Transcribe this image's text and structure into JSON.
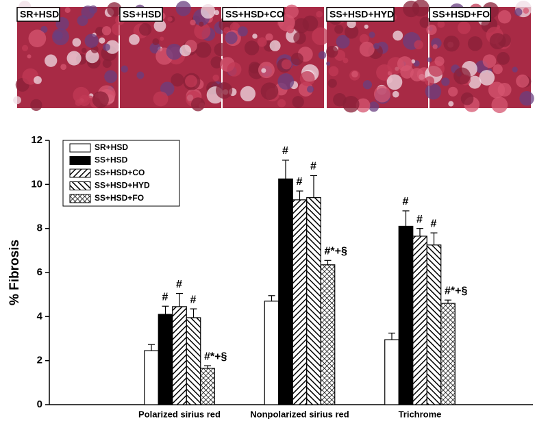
{
  "panels": [
    "SR+HSD",
    "SS+HSD",
    "SS+HSD+CO",
    "SS+HSD+HYD",
    "SS+HSD+FO"
  ],
  "chart_data": {
    "type": "bar",
    "ylabel": "% Fibrosis",
    "categories": [
      "Polarized sirius red",
      "Nonpolarized sirius red",
      "Trichrome"
    ],
    "ylim": [
      0,
      12
    ],
    "yticks": [
      0,
      2,
      4,
      6,
      8,
      10,
      12
    ],
    "legend": "upper left",
    "series": [
      {
        "name": "SR+HSD",
        "color": "#ffffff",
        "pattern": "none",
        "values": [
          2.45,
          4.7,
          2.95
        ],
        "errors": [
          0.28,
          0.25,
          0.3
        ],
        "annotations": [
          null,
          null,
          null
        ]
      },
      {
        "name": "SS+HSD",
        "color": "#000000",
        "pattern": "solid",
        "values": [
          4.1,
          10.25,
          8.1
        ],
        "errors": [
          0.37,
          0.85,
          0.7
        ],
        "annotations": [
          "#",
          "#",
          "#"
        ]
      },
      {
        "name": "SS+HSD+CO",
        "color": "#000000",
        "pattern": "diag-right",
        "values": [
          4.45,
          9.3,
          7.65
        ],
        "errors": [
          0.6,
          0.4,
          0.35
        ],
        "annotations": [
          "#",
          "#",
          "#"
        ]
      },
      {
        "name": "SS+HSD+HYD",
        "color": "#000000",
        "pattern": "diag-left",
        "values": [
          3.95,
          9.4,
          7.25
        ],
        "errors": [
          0.4,
          1.0,
          0.55
        ],
        "annotations": [
          "#",
          "#",
          "#"
        ]
      },
      {
        "name": "SS+HSD+FO",
        "color": "#000000",
        "pattern": "cross",
        "values": [
          1.65,
          6.35,
          4.6
        ],
        "errors": [
          0.12,
          0.2,
          0.15
        ],
        "annotations": [
          "#*+§",
          "#*+§",
          "#*+§"
        ]
      }
    ]
  }
}
